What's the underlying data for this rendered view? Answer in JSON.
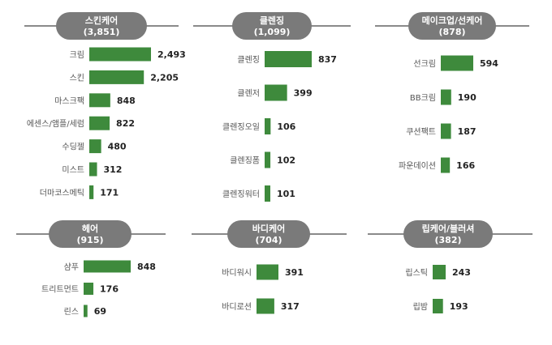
{
  "colors": {
    "bar": "#3e8a3c",
    "header_fill": "#7a7a7a",
    "header_line": "#8a8a8a",
    "header_text": "#ffffff",
    "label_text": "#555555",
    "value_text": "#222222"
  },
  "chart_data": [
    {
      "type": "bar",
      "orientation": "horizontal",
      "title": "스킨케어",
      "subtitle": "(3,851)",
      "categories": [
        "크림",
        "스킨",
        "마스크팩",
        "에센스/앰플/세럼",
        "수딩젤",
        "미스트",
        "더마코스메틱"
      ],
      "values": [
        2493,
        2205,
        848,
        822,
        480,
        312,
        171
      ],
      "value_labels": [
        "2,493",
        "2,205",
        "848",
        "822",
        "480",
        "312",
        "171"
      ]
    },
    {
      "type": "bar",
      "orientation": "horizontal",
      "title": "클렌징",
      "subtitle": "(1,099)",
      "categories": [
        "클렌징",
        "클렌저",
        "클렌징오일",
        "클렌징폼",
        "클렌징워터"
      ],
      "values": [
        837,
        399,
        106,
        102,
        101
      ],
      "value_labels": [
        "837",
        "399",
        "106",
        "102",
        "101"
      ]
    },
    {
      "type": "bar",
      "orientation": "horizontal",
      "title": "메이크업/선케어",
      "subtitle": "(878)",
      "categories": [
        "선크림",
        "BB크림",
        "쿠션팩트",
        "파운데이션"
      ],
      "values": [
        594,
        190,
        187,
        166
      ],
      "value_labels": [
        "594",
        "190",
        "187",
        "166"
      ]
    },
    {
      "type": "bar",
      "orientation": "horizontal",
      "title": "헤어",
      "subtitle": "(915)",
      "categories": [
        "샴푸",
        "트리트먼트",
        "린스"
      ],
      "values": [
        848,
        176,
        69
      ],
      "value_labels": [
        "848",
        "176",
        "69"
      ]
    },
    {
      "type": "bar",
      "orientation": "horizontal",
      "title": "바디케어",
      "subtitle": "(704)",
      "categories": [
        "바디워시",
        "바디로션"
      ],
      "values": [
        391,
        317
      ],
      "value_labels": [
        "391",
        "317"
      ]
    },
    {
      "type": "bar",
      "orientation": "horizontal",
      "title": "립케어/블러셔",
      "subtitle": "(382)",
      "categories": [
        "립스틱",
        "립밤"
      ],
      "values": [
        243,
        193
      ],
      "value_labels": [
        "243",
        "193"
      ]
    }
  ]
}
